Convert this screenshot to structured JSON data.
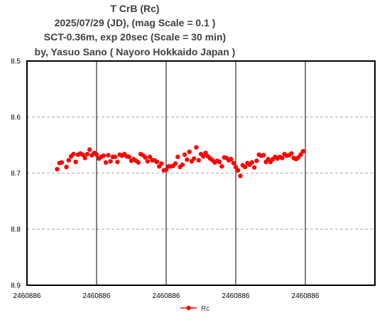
{
  "chart_data": {
    "type": "scatter",
    "title_lines": [
      "T CrB  (Rc)",
      "2025/07/29 (JD),   (mag Scale = 0.1 )",
      "SCT-0.36m, exp 20sec (Scale = 30 min)",
      "by, Yasuo Sano ( Nayoro Hokkaido Japan )"
    ],
    "x_ticks": [
      "2460886",
      "2460886",
      "2460886",
      "2460886",
      "2460886"
    ],
    "y_ticks": [
      "8.5",
      "8.6",
      "8.7",
      "8.8",
      "8.9"
    ],
    "ylim": [
      8.5,
      8.9
    ],
    "y_inverted": true,
    "grid": "vertical solid black, horizontal dashed gray",
    "legend_position": "bottom-center",
    "series": [
      {
        "name": "Rc",
        "color": "#ff0000",
        "marker": "circle",
        "line": false,
        "x_unit": "minutes from left edge of plot (tick spacing = 30 min)",
        "x": [
          0,
          1,
          2,
          4,
          5,
          6,
          7,
          8,
          9,
          10,
          11,
          12,
          13,
          14,
          15,
          16,
          17,
          18,
          19,
          20,
          21,
          22,
          23,
          24,
          25,
          26,
          27,
          28,
          29,
          30,
          31,
          32,
          33,
          34,
          35,
          36,
          37,
          38,
          39,
          40,
          41,
          42,
          43,
          44,
          45,
          46,
          47,
          48,
          49,
          50,
          51,
          52,
          53,
          54,
          55,
          56,
          57,
          58,
          59,
          60,
          61,
          62,
          63,
          64,
          65,
          66,
          67,
          68,
          69,
          70,
          71,
          72,
          73,
          74,
          75,
          76,
          77,
          78,
          79,
          80,
          81,
          82,
          83,
          84,
          85,
          86,
          87,
          88,
          89,
          90,
          91,
          92,
          93,
          94,
          95,
          96,
          97,
          98,
          99,
          100,
          101,
          102,
          103,
          104,
          105,
          106
        ],
        "y": [
          8.693,
          8.682,
          8.681,
          8.689,
          8.677,
          8.67,
          8.666,
          8.68,
          8.667,
          8.665,
          8.667,
          8.673,
          8.666,
          8.658,
          8.668,
          8.664,
          8.667,
          8.674,
          8.671,
          8.669,
          8.681,
          8.668,
          8.679,
          8.671,
          8.671,
          8.68,
          8.667,
          8.669,
          8.666,
          8.67,
          8.671,
          8.678,
          8.675,
          8.678,
          8.681,
          8.666,
          8.668,
          8.672,
          8.679,
          8.671,
          8.677,
          8.677,
          8.68,
          8.688,
          8.683,
          8.695,
          8.694,
          8.688,
          8.688,
          8.687,
          8.683,
          8.671,
          8.689,
          8.685,
          8.667,
          8.676,
          8.662,
          8.679,
          8.674,
          8.654,
          8.677,
          8.666,
          8.67,
          8.664,
          8.67,
          8.674,
          8.677,
          8.681,
          8.678,
          8.68,
          8.688,
          8.672,
          8.673,
          8.677,
          8.675,
          8.682,
          8.689,
          8.695,
          8.705,
          8.686,
          8.689,
          8.682,
          8.685,
          8.681,
          8.69,
          8.678,
          8.667,
          8.669,
          8.668,
          8.68,
          8.675,
          8.68,
          8.675,
          8.671,
          8.674,
          8.671,
          8.673,
          8.666,
          8.669,
          8.668,
          8.665,
          8.673,
          8.675,
          8.672,
          8.667,
          8.661
        ]
      }
    ]
  }
}
